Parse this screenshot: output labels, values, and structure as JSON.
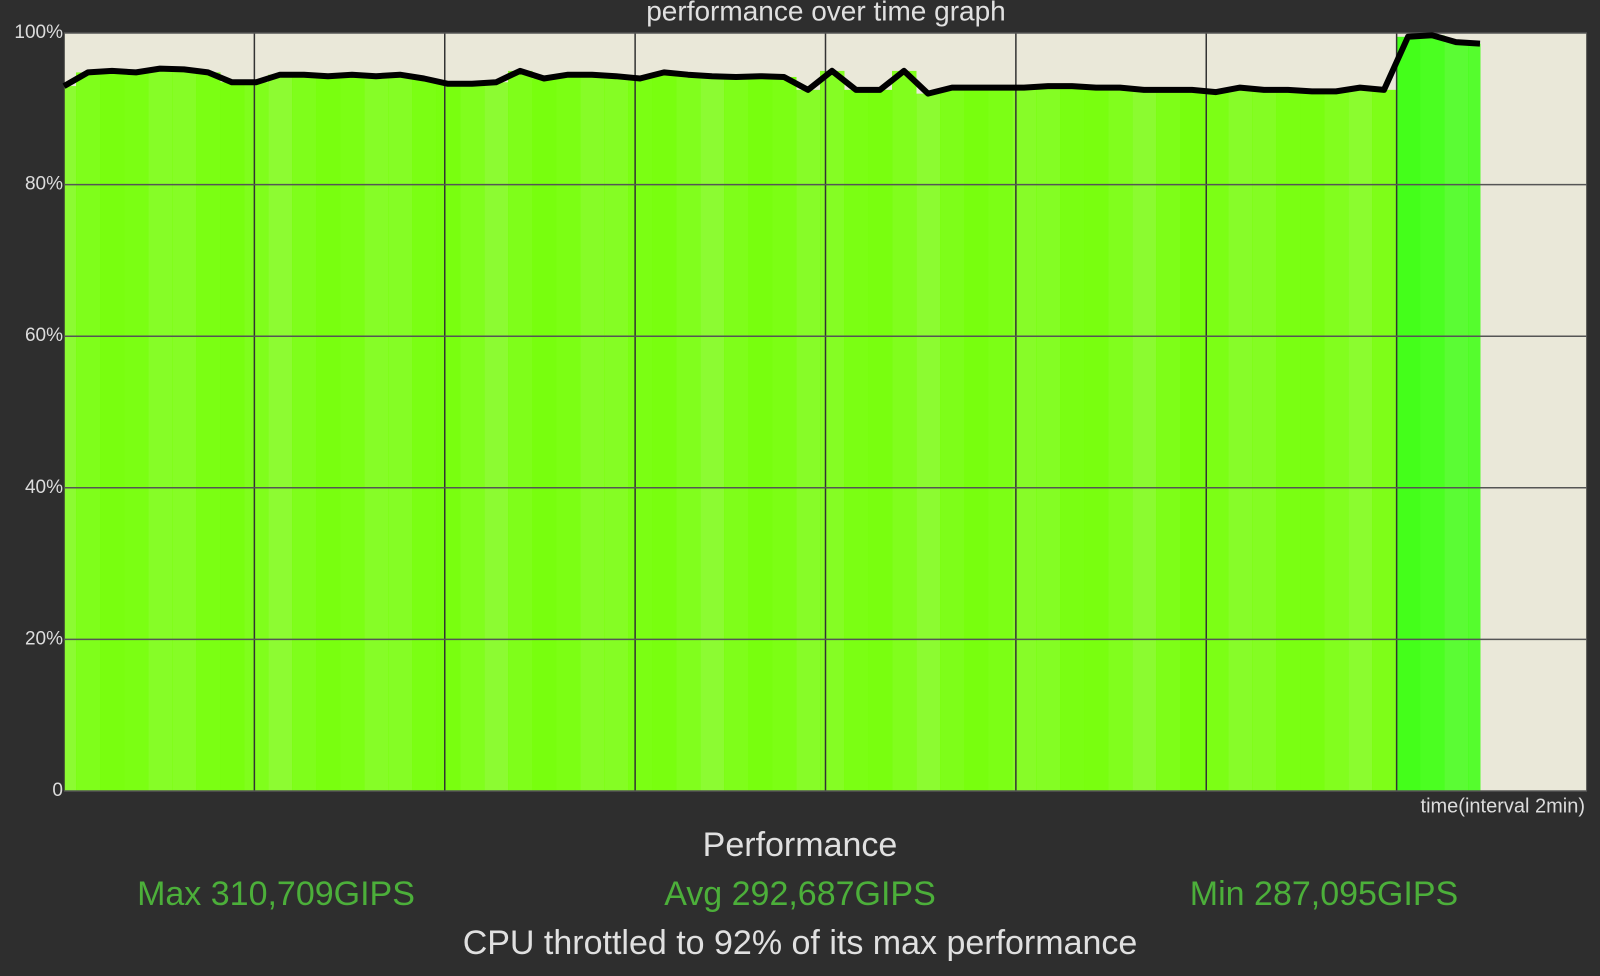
{
  "chart_data": {
    "type": "area",
    "title": "performance over time graph",
    "x_label": "time(interval 2min)",
    "values": [
      93,
      94.8,
      95,
      94.8,
      95.3,
      95.2,
      94.8,
      93.5,
      93.5,
      94.5,
      94.5,
      94.3,
      94.5,
      94.3,
      94.5,
      94,
      93.3,
      93.3,
      93.5,
      95,
      94,
      94.5,
      94.5,
      94.3,
      94,
      94.8,
      94.5,
      94.3,
      94.2,
      94.3,
      94.2,
      92.5,
      95,
      92.5,
      92.5,
      95,
      92,
      92.8,
      92.8,
      92.8,
      92.8,
      93,
      93,
      92.8,
      92.8,
      92.5,
      92.5,
      92.5,
      92.2,
      92.8,
      92.5,
      92.5,
      92.3,
      92.3,
      92.8,
      92.5,
      99.5,
      99.7,
      98.8,
      98.6
    ],
    "color": "#78ff0e",
    "line_color": "#000000",
    "ylim": [
      0,
      100
    ],
    "yticks": [
      0,
      {
        "value": 20,
        "label": "20%"
      },
      {
        "value": 40,
        "label": "40%"
      },
      {
        "value": 60,
        "label": "60%"
      },
      {
        "value": 80,
        "label": "80%"
      },
      {
        "value": 100,
        "label": "100%"
      }
    ],
    "grid": true
  },
  "summary": {
    "heading": "Performance",
    "max": "Max 310,709GIPS",
    "avg": "Avg 292,687GIPS",
    "min": "Min 287,095GIPS",
    "verdict": "CPU throttled to 92% of its max performance"
  }
}
